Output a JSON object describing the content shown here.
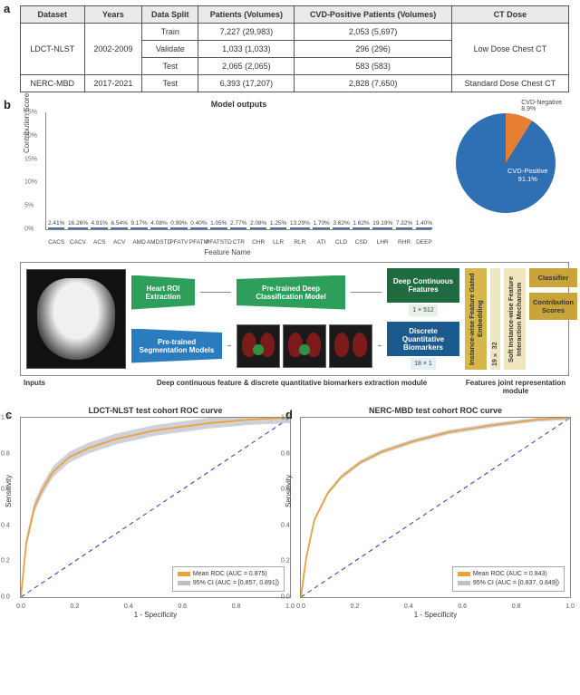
{
  "panel_labels": {
    "a": "a",
    "b": "b",
    "c": "c",
    "d": "d"
  },
  "table": {
    "headers": [
      "Dataset",
      "Years",
      "Data Split",
      "Patients (Volumes)",
      "CVD-Positive Patients (Volumes)",
      "CT Dose"
    ],
    "rows": [
      {
        "dataset": "LDCT-NLST",
        "years": "2002-2009",
        "split": "Train",
        "patients": "7,227 (29,983)",
        "cvd": "2,053 (5,697)",
        "dose": "Low Dose Chest CT"
      },
      {
        "dataset": "",
        "years": "",
        "split": "Validate",
        "patients": "1,033 (1,033)",
        "cvd": "296 (296)",
        "dose": ""
      },
      {
        "dataset": "",
        "years": "",
        "split": "Test",
        "patients": "2,065 (2,065)",
        "cvd": "583 (583)",
        "dose": ""
      },
      {
        "dataset": "NERC-MBD",
        "years": "2017-2021",
        "split": "Test",
        "patients": "6,393 (17,207)",
        "cvd": "2,828 (7,650)",
        "dose": "Standard Dose Chest CT"
      }
    ]
  },
  "bar_chart": {
    "type": "bar",
    "title": "Model outputs",
    "ylabel": "Contribution Score",
    "xlabel": "Feature Name",
    "ylim": [
      0,
      25
    ],
    "ytick_step": 5,
    "bar_color": "#6b8fd4",
    "border_color": "#888",
    "label_fontsize": 8,
    "title_fontsize": 9,
    "categories": [
      "CACS",
      "CACV",
      "ACS",
      "ACV",
      "AMD",
      "AMDSTD",
      "PFATV",
      "PFATM",
      "PFATSTD",
      "CTR",
      "CHR",
      "LLR",
      "RLR",
      "ATI",
      "CLD",
      "CSD",
      "LHR",
      "RHR",
      "DEEP"
    ],
    "values": [
      2.41,
      16.26,
      4.91,
      6.54,
      9.17,
      4.08,
      0.99,
      0.4,
      1.05,
      2.77,
      2.08,
      1.25,
      13.29,
      1.7,
      3.62,
      1.62,
      19.19,
      7.32,
      1.4
    ]
  },
  "pie": {
    "type": "pie",
    "labels": [
      "CVD-Negative",
      "CVD-Positive"
    ],
    "values": [
      8.9,
      91.1
    ],
    "colors": [
      "#e77f33",
      "#2f6fb3"
    ],
    "background_color": "#ffffff"
  },
  "diagram": {
    "inputs_label": "Inputs",
    "mid_label": "Deep continuous feature & discrete quantitative biomarkers extraction module",
    "feat_label": "Features joint representation module",
    "heart_roi": "Heart ROI Extraction",
    "deep_model": "Pre-trained Deep Classification Model",
    "seg_model": "Pre-trained Segmentation Models",
    "deep_feat": "Deep Continuous Features",
    "deep_dim": "1 × 512",
    "disc_feat": "Discrete Quantitative Biomarkers",
    "disc_dim": "18 × 1",
    "vbar1": "Instance-wise Feature Gated Embedding",
    "dim_mid": "19 × 32",
    "vbar2": "Soft Instance-wise Feature Interaction Mechanism",
    "classifier": "Classifier",
    "scores": "Contribution Scores",
    "colors": {
      "green": "#2e9e5b",
      "green_dark": "#1f6b3f",
      "blue": "#2b7bbf",
      "blue_dark": "#1b5a8f",
      "gold": "#c9a43a",
      "gold_mid": "#d6b74c",
      "gold_light": "#efe6bf"
    }
  },
  "roc_c": {
    "type": "line",
    "title": "LDCT-NLST test cohort ROC curve",
    "xlabel": "1 - Specificity",
    "ylabel": "Sensitivity",
    "xlim": [
      0,
      1
    ],
    "ylim": [
      0,
      1
    ],
    "tick_step": 0.2,
    "mean_color": "#e8a33d",
    "ci_color": "#b9bfc7",
    "diag_color": "#2637c7",
    "legend_mean": "Mean ROC (AUC = 0.875)",
    "legend_ci": "95% CI (AUC = [0.857, 0.891])",
    "fpr": [
      0,
      0.02,
      0.05,
      0.08,
      0.12,
      0.18,
      0.25,
      0.35,
      0.5,
      0.7,
      0.85,
      1.0
    ],
    "tpr": [
      0,
      0.3,
      0.5,
      0.6,
      0.7,
      0.78,
      0.83,
      0.88,
      0.93,
      0.97,
      0.99,
      1.0
    ],
    "ci_hw": 0.03
  },
  "roc_d": {
    "type": "line",
    "title": "NERC-MBD test cohort ROC curve",
    "xlabel": "1 - Specificity",
    "ylabel": "Sensitivity",
    "xlim": [
      0,
      1
    ],
    "ylim": [
      0,
      1
    ],
    "tick_step": 0.2,
    "mean_color": "#e8a33d",
    "ci_color": "#b9bfc7",
    "diag_color": "#2637c7",
    "legend_mean": "Mean ROC (AUC = 0.843)",
    "legend_ci": "95% CI (AUC = [0.837, 0.849])",
    "fpr": [
      0,
      0.02,
      0.05,
      0.1,
      0.15,
      0.22,
      0.3,
      0.42,
      0.55,
      0.72,
      0.88,
      1.0
    ],
    "tpr": [
      0,
      0.22,
      0.43,
      0.58,
      0.67,
      0.75,
      0.81,
      0.87,
      0.92,
      0.96,
      0.99,
      1.0
    ],
    "ci_hw": 0.012
  }
}
